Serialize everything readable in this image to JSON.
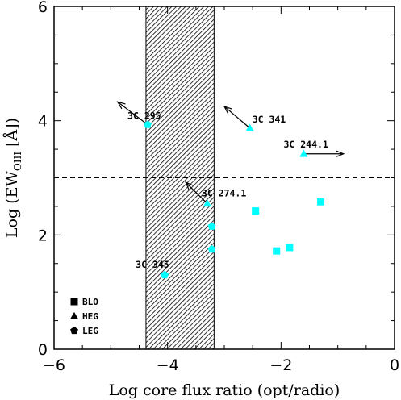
{
  "chart_data": {
    "type": "scatter",
    "xlabel": "Log core flux ratio (opt/radio)",
    "ylabel_main": "Log (EW",
    "ylabel_sub": "OIII",
    "ylabel_tail": " [Å])",
    "xlim": [
      -6,
      0
    ],
    "ylim": [
      0,
      6
    ],
    "xticks": [
      -6,
      -4,
      -2,
      0
    ],
    "xtick_labels": [
      "−6",
      "−4",
      "−2",
      "0"
    ],
    "yticks": [
      0,
      2,
      4,
      6
    ],
    "ytick_labels": [
      "0",
      "2",
      "4",
      "6"
    ],
    "point_color": "#00ffff",
    "shaded_band": {
      "x0": -4.38,
      "x1": -3.18,
      "pattern": "diagonal-hatch"
    },
    "reference_line": {
      "y": 3.0,
      "style": "dashed"
    },
    "points": [
      {
        "marker": "triangle",
        "x": -2.55,
        "y": 3.87,
        "label": "3C 341"
      },
      {
        "marker": "triangle",
        "x": -1.6,
        "y": 3.42,
        "label": "3C 244.1"
      },
      {
        "marker": "triangle",
        "x": -3.3,
        "y": 2.55,
        "label": "3C 274.1"
      },
      {
        "marker": "pentagon",
        "x": -4.35,
        "y": 3.93,
        "label": "3C 295"
      },
      {
        "marker": "pentagon",
        "x": -4.05,
        "y": 1.3,
        "label": "3C 345"
      },
      {
        "marker": "pentagon",
        "x": -3.22,
        "y": 2.15,
        "label": ""
      },
      {
        "marker": "pentagon",
        "x": -3.22,
        "y": 1.75,
        "label": ""
      },
      {
        "marker": "square",
        "x": -2.45,
        "y": 2.42,
        "label": ""
      },
      {
        "marker": "square",
        "x": -2.08,
        "y": 1.72,
        "label": ""
      },
      {
        "marker": "square",
        "x": -1.85,
        "y": 1.78,
        "label": ""
      },
      {
        "marker": "square",
        "x": -1.3,
        "y": 2.58,
        "label": ""
      }
    ],
    "arrows": [
      {
        "from": [
          -4.35,
          3.93
        ],
        "to": [
          -4.88,
          4.33
        ]
      },
      {
        "from": [
          -2.55,
          3.87
        ],
        "to": [
          -3.0,
          4.25
        ]
      },
      {
        "from": [
          -1.6,
          3.42
        ],
        "to": [
          -0.9,
          3.42
        ]
      },
      {
        "from": [
          -3.3,
          2.55
        ],
        "to": [
          -3.68,
          2.92
        ]
      }
    ],
    "legend": [
      {
        "marker": "square",
        "label": "BLO"
      },
      {
        "marker": "triangle",
        "label": "HEG"
      },
      {
        "marker": "pentagon",
        "label": "LEG"
      }
    ],
    "legend_position": "bottom-left"
  }
}
